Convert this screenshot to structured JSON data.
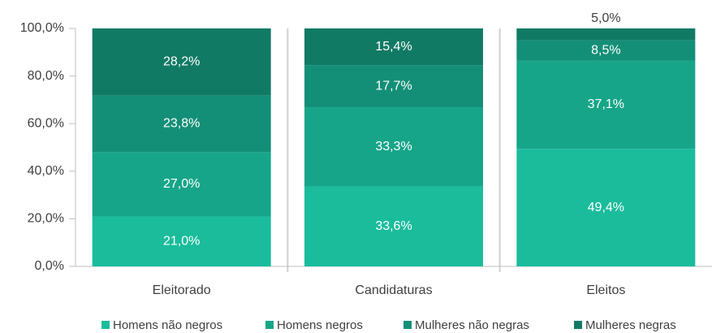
{
  "chart_data": {
    "type": "stacked_bar",
    "categories": [
      "Eleitorado",
      "Candidaturas",
      "Eleitos"
    ],
    "series": [
      {
        "name": "Homens não negros",
        "color": "#1abc9c",
        "values": [
          21.0,
          33.6,
          49.4
        ],
        "value_labels": [
          "21,0%",
          "33,6%",
          "49,4%"
        ]
      },
      {
        "name": "Homens negros",
        "color": "#17a589",
        "values": [
          27.0,
          33.3,
          37.1
        ],
        "value_labels": [
          "27,0%",
          "33,3%",
          "37,1%"
        ]
      },
      {
        "name": "Mulheres não negras",
        "color": "#148f77",
        "values": [
          23.8,
          17.7,
          8.5
        ],
        "value_labels": [
          "23,8%",
          "17,7%",
          "8,5%"
        ]
      },
      {
        "name": "Mulheres negras",
        "color": "#117a65",
        "values": [
          28.2,
          15.4,
          5.0
        ],
        "value_labels": [
          "28,2%",
          "15,4%",
          "5,0%"
        ]
      }
    ],
    "ylim": [
      0,
      100
    ],
    "yticks": [
      {
        "value": 0,
        "label": "0,0%"
      },
      {
        "value": 20,
        "label": "20,0%"
      },
      {
        "value": 40,
        "label": "40,0%"
      },
      {
        "value": 60,
        "label": "60,0%"
      },
      {
        "value": 80,
        "label": "80,0%"
      },
      {
        "value": 100,
        "label": "100,0%"
      }
    ],
    "legend": "bottom"
  }
}
